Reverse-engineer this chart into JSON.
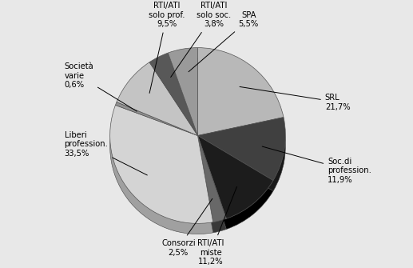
{
  "labels": [
    "SRL\n21,7%",
    "Soc.di\nprofession.\n11,9%",
    "RTI/ATI\nmiste\n11,2%",
    "Consorzi\n2,5%",
    "Liberi\nprofession.\n33,5%",
    "Società\nvarie\n0,6%",
    "RTI/ATI\nsolo prof.\n9,5%",
    "RTI/ATI\nsolo soc.\n3,8%",
    "SPA\n5,5%"
  ],
  "values": [
    21.7,
    11.9,
    11.2,
    2.5,
    33.5,
    0.6,
    9.5,
    3.8,
    5.5
  ],
  "colors": [
    "#b8b8b8",
    "#404040",
    "#1c1c1c",
    "#686868",
    "#d4d4d4",
    "#909090",
    "#c4c4c4",
    "#585858",
    "#9a9a9a"
  ],
  "shadow_colors": [
    "#808080",
    "#181818",
    "#000000",
    "#383838",
    "#a0a0a0",
    "#585858",
    "#8c8c8c",
    "#282828",
    "#606060"
  ],
  "startangle": 90,
  "background_color": "#e8e8e8"
}
